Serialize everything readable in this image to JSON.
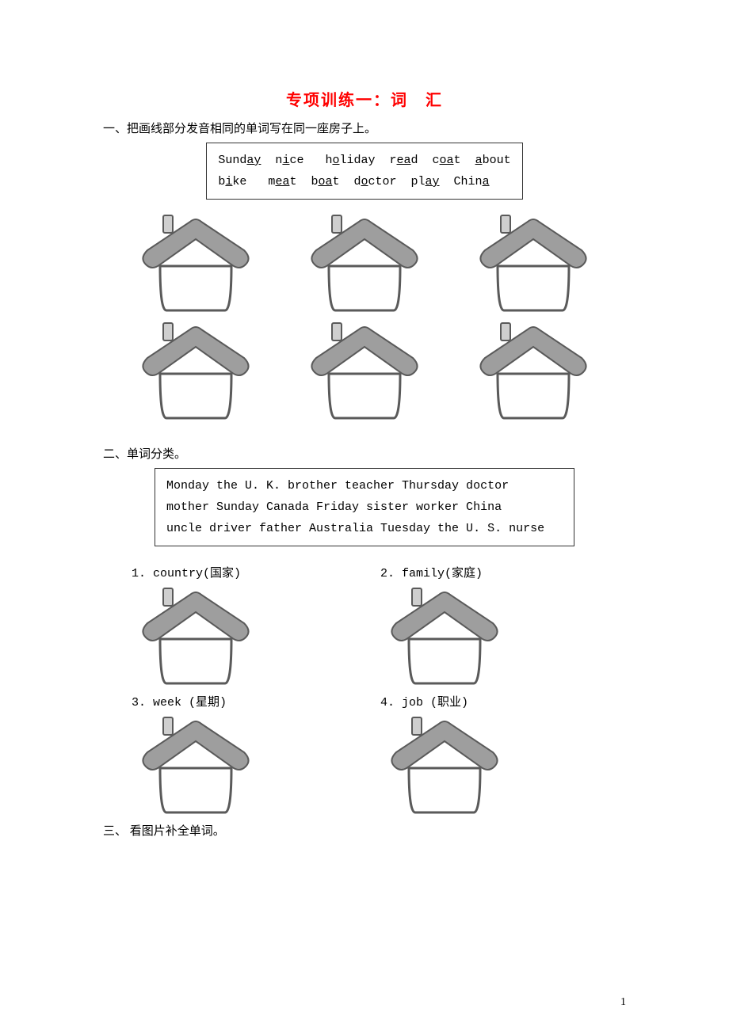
{
  "title": "专项训练一：词　汇",
  "section1": {
    "heading": "一、把画线部分发音相同的单词写在同一座房子上。",
    "line1_raw": "Sund{ay}  n{i}ce   h{o}liday  r{ea}d  c{oa}t  {a}bout",
    "line2_raw": "b{i}ke   m{ea}t  b{oa}t  d{o}ctor  pl{ay}  Chin{a}"
  },
  "section2": {
    "heading": "二、单词分类。",
    "box_line1": "Monday  the U. K.  brother  teacher  Thursday  doctor",
    "box_line2": "mother  Sunday  Canada  Friday  sister  worker  China",
    "box_line3": "uncle  driver  father  Australia  Tuesday  the U. S.  nurse",
    "items": [
      {
        "label": "1. country(国家)"
      },
      {
        "label": "2. family(家庭)"
      },
      {
        "label": "3. week (星期)"
      },
      {
        "label": "4. job (职业)"
      }
    ]
  },
  "section3": {
    "heading": "三、 看图片补全单词。"
  },
  "house_svg": {
    "width": 154,
    "height": 130,
    "roof_fill": "#9e9e9e",
    "roof_stroke": "#5a5a5a",
    "wall_fill": "#ffffff",
    "wall_stroke": "#5a5a5a",
    "chimney_fill": "#cfcfcf",
    "chimney_stroke": "#5a5a5a"
  },
  "page_number": "1"
}
